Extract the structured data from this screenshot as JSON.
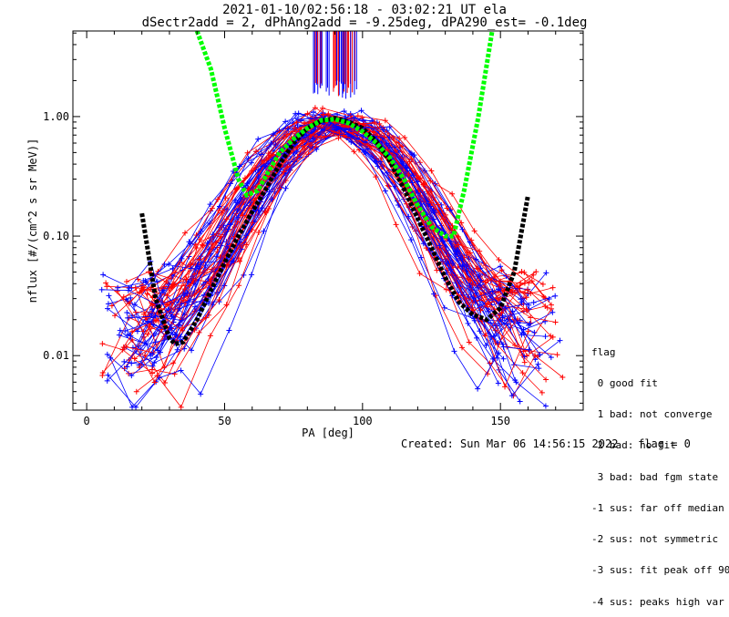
{
  "title_line1": "2021-01-10/02:56:18 - 03:02:21 UT ela",
  "title_line2": "dSectr2add = 2, dPhAng2add = -9.25deg, dPA290_est=  -0.1deg",
  "footer_created": "Created: Sun Mar 06 14:56:15 2022",
  "footer_flag": "flag = 0",
  "legend": {
    "header": "flag",
    "items": [
      " 0 good fit",
      " 1 bad: not converge",
      " 2 bad: no fit",
      " 3 bad: bad fgm state",
      "-1 sus: far off median",
      "-2 sus: not symmetric",
      "-3 sus: fit peak off 90",
      "-4 sus: peaks high var"
    ]
  },
  "chart_data": {
    "type": "line",
    "xlabel": "PA [deg]",
    "ylabel": "nflux [#/(cm^2 s sr MeV)]",
    "xlim": [
      -5,
      180
    ],
    "ylim": [
      0.0035,
      5.2
    ],
    "yscale": "log",
    "xticks": [
      0,
      50,
      100,
      150
    ],
    "yticks": [
      0.01,
      0.1,
      1.0
    ],
    "ytick_labels": [
      "0.01",
      "0.10",
      "1.00"
    ],
    "grid": false,
    "colors": {
      "red_lines": "#ff0000",
      "blue_lines": "#0000ff",
      "fit_black": "#000000",
      "fit_green": "#00ff00"
    },
    "series": [
      {
        "color": "black",
        "style": "dashed-fit",
        "x": [
          20,
          25,
          30,
          32,
          35,
          40,
          45,
          50,
          55,
          60,
          65,
          70,
          75,
          80,
          85,
          90,
          95,
          100,
          105,
          110,
          115,
          120,
          125,
          130,
          135,
          140,
          145,
          150,
          155,
          160
        ],
        "y": [
          0.155,
          0.03,
          0.014,
          0.0125,
          0.013,
          0.02,
          0.035,
          0.06,
          0.1,
          0.16,
          0.25,
          0.4,
          0.6,
          0.8,
          0.92,
          0.97,
          0.9,
          0.8,
          0.62,
          0.42,
          0.25,
          0.14,
          0.08,
          0.045,
          0.028,
          0.022,
          0.02,
          0.025,
          0.05,
          0.22
        ]
      },
      {
        "color": "green",
        "style": "dashed-fit",
        "x": [
          40,
          45,
          50,
          55,
          58,
          62,
          66,
          70,
          75,
          80,
          85,
          90,
          95,
          100,
          105,
          110,
          115,
          120,
          125,
          130,
          133,
          137,
          142,
          147
        ],
        "y": [
          5.2,
          2.5,
          0.8,
          0.3,
          0.22,
          0.24,
          0.35,
          0.5,
          0.65,
          0.8,
          0.93,
          0.95,
          0.88,
          0.75,
          0.6,
          0.45,
          0.3,
          0.18,
          0.12,
          0.1,
          0.1,
          0.25,
          1.0,
          5.2
        ]
      }
    ]
  }
}
